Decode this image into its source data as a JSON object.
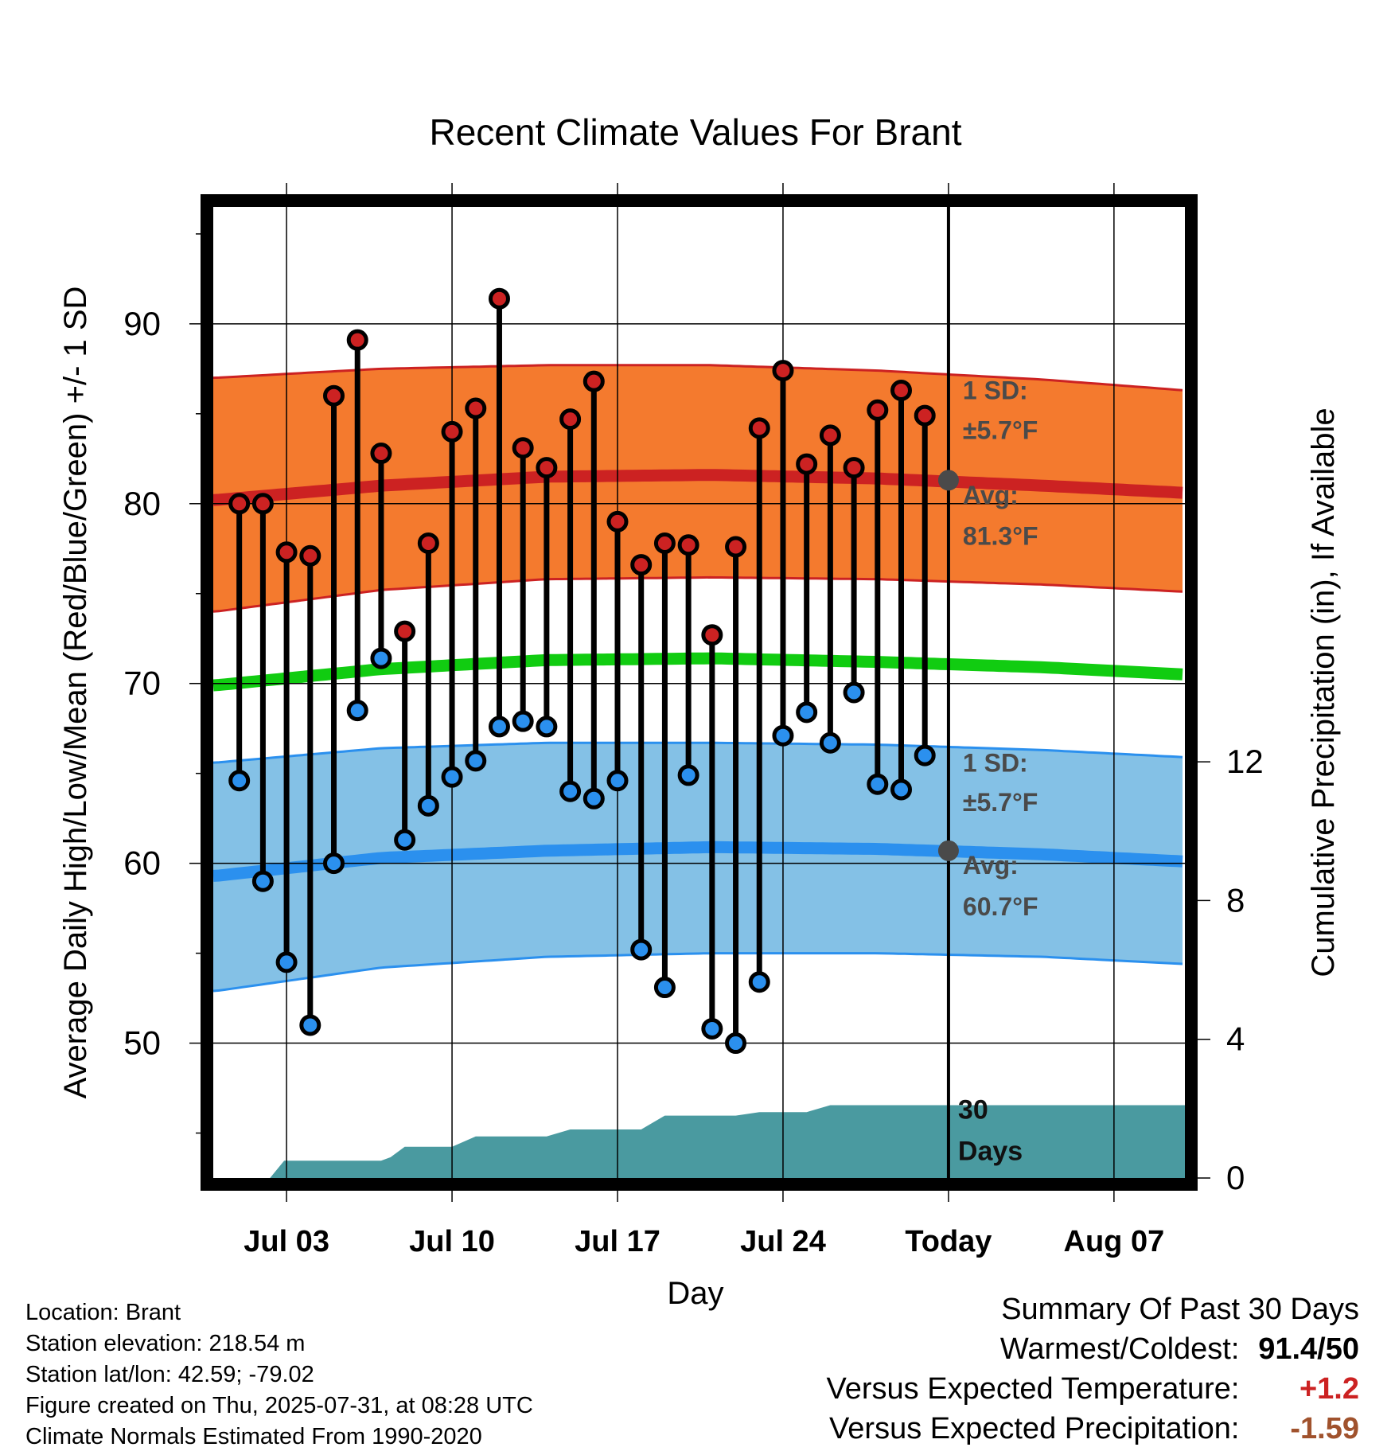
{
  "chart_data": {
    "type": "line",
    "title": "Recent Climate Values For Brant",
    "xlabel": "Day",
    "ylabel": "Average Daily High/Low/Mean (Red/Blue/Green) +/- 1 SD",
    "y2label": "Cumulative Precipitation (in), If Available",
    "xtick_labels": [
      "Jul 03",
      "Jul 10",
      "Jul 17",
      "Jul 24",
      "Today",
      "Aug 07"
    ],
    "xtick_days": [
      3,
      10,
      17,
      24,
      31,
      38
    ],
    "xlim": [
      -0.1,
      41.0
    ],
    "ylim": [
      42.5,
      96.5
    ],
    "yticks": [
      50,
      60,
      70,
      80,
      90
    ],
    "y2lim": [
      0,
      28
    ],
    "y2ticks": [
      0,
      4,
      8,
      12
    ],
    "grid": true,
    "today_day": 31,
    "days": [
      1,
      2,
      3,
      4,
      5,
      6,
      7,
      8,
      9,
      10,
      11,
      12,
      13,
      14,
      15,
      16,
      17,
      18,
      19,
      20,
      21,
      22,
      23,
      24,
      25,
      26,
      27,
      28,
      29,
      30
    ],
    "series": [
      {
        "name": "High",
        "color": "#cc2222",
        "values": [
          80.0,
          80.0,
          77.3,
          77.1,
          86.0,
          89.1,
          82.8,
          72.9,
          77.8,
          84.0,
          85.3,
          91.4,
          83.1,
          82.0,
          84.7,
          86.8,
          79.0,
          76.6,
          77.8,
          77.7,
          72.7,
          77.6,
          84.2,
          87.4,
          82.2,
          83.8,
          82.0,
          85.2,
          86.3,
          84.9
        ]
      },
      {
        "name": "Low",
        "color": "#2b9be8",
        "values": [
          64.6,
          59.0,
          54.5,
          51.0,
          60.0,
          68.5,
          71.4,
          61.3,
          63.2,
          64.8,
          65.7,
          67.6,
          67.9,
          67.6,
          64.0,
          63.6,
          64.6,
          55.2,
          53.1,
          64.9,
          50.8,
          50.0,
          53.4,
          67.1,
          68.4,
          66.7,
          69.5,
          64.4,
          64.1,
          66.0
        ]
      }
    ],
    "normals": {
      "high_avg": {
        "day": [
          0,
          7,
          14,
          21,
          28,
          35,
          41
        ],
        "values": [
          80.2,
          81.0,
          81.5,
          81.6,
          81.4,
          81.0,
          80.6
        ]
      },
      "high_upper": {
        "day": [
          0,
          7,
          14,
          21,
          28,
          35,
          41
        ],
        "values": [
          87.0,
          87.5,
          87.7,
          87.7,
          87.4,
          86.9,
          86.3
        ]
      },
      "high_lower": {
        "day": [
          0,
          7,
          14,
          21,
          28,
          35,
          41
        ],
        "values": [
          74.0,
          75.2,
          75.8,
          75.9,
          75.8,
          75.5,
          75.1
        ]
      },
      "mean_avg": {
        "day": [
          0,
          7,
          14,
          21,
          28,
          35,
          41
        ],
        "values": [
          69.9,
          70.8,
          71.3,
          71.4,
          71.2,
          70.9,
          70.5
        ]
      },
      "low_avg": {
        "day": [
          0,
          7,
          14,
          21,
          28,
          35,
          41
        ],
        "values": [
          59.3,
          60.3,
          60.7,
          60.9,
          60.8,
          60.5,
          60.1
        ]
      },
      "low_upper": {
        "day": [
          0,
          7,
          14,
          21,
          28,
          35,
          41
        ],
        "values": [
          65.6,
          66.4,
          66.7,
          66.7,
          66.6,
          66.3,
          65.9
        ]
      },
      "low_lower": {
        "day": [
          0,
          7,
          14,
          21,
          28,
          35,
          41
        ],
        "values": [
          52.9,
          54.2,
          54.8,
          55.0,
          55.0,
          54.8,
          54.4
        ]
      }
    },
    "precip_cumulative": {
      "day": [
        2.3,
        2.9,
        4.1,
        5.0,
        6.0,
        6.3,
        7.0,
        7.4,
        8.0,
        9.0,
        10.0,
        11.0,
        12.0,
        13.0,
        14.0,
        15.0,
        16.0,
        17.0,
        18.0,
        19.0,
        20.0,
        21.0,
        22.0,
        23.0,
        24.0,
        25.0,
        26.0,
        27.0,
        28.0,
        31.0,
        41.0
      ],
      "values": [
        0,
        0.5,
        0.5,
        0.5,
        0.5,
        0.5,
        0.5,
        0.6,
        0.9,
        0.9,
        0.9,
        1.2,
        1.2,
        1.2,
        1.2,
        1.4,
        1.4,
        1.4,
        1.4,
        1.8,
        1.8,
        1.8,
        1.8,
        1.9,
        1.9,
        1.9,
        2.1,
        2.1,
        2.1,
        2.1,
        2.1
      ]
    },
    "annotations": {
      "high_sd": [
        "1 SD:",
        "±5.7°F"
      ],
      "high_avg": [
        "Avg:",
        "81.3°F"
      ],
      "low_sd": [
        "1 SD:",
        "±5.7°F"
      ],
      "low_avg": [
        "Avg:",
        "60.7°F"
      ],
      "period": [
        "30",
        "Days"
      ],
      "today_high_avg": 81.3,
      "today_low_avg": 60.7
    },
    "colors": {
      "high_band": "#f47a2e",
      "high_line": "#cc2222",
      "mean_line": "#11cc11",
      "low_band": "#84c1e6",
      "low_line": "#2b90ee",
      "precip": "#4a9aa0",
      "annotation": "#4a4a4a"
    }
  },
  "footer": {
    "location": "Location: Brant",
    "elevation": "Station elevation: 218.54 m",
    "latlon": "Station lat/lon: 42.59; -79.02",
    "created": "Figure created on Thu, 2025-07-31, at 08:28 UTC",
    "normals": "Climate Normals Estimated From 1990-2020"
  },
  "summary": {
    "title": "Summary Of Past 30 Days",
    "warmest_label": "Warmest/Coldest:",
    "warmest_value": "91.4/50",
    "temp_label": "Versus Expected Temperature:",
    "temp_value": "+1.2",
    "temp_color": "#cc2222",
    "precip_label": "Versus Expected Precipitation:",
    "precip_value": "-1.59",
    "precip_color": "#a0522d"
  }
}
